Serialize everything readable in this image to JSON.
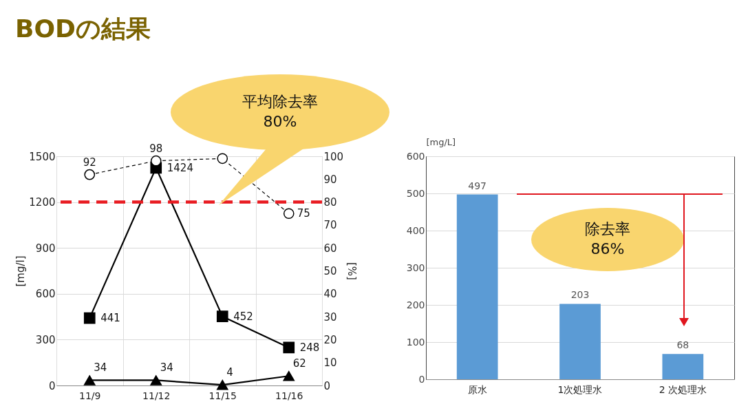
{
  "chart_data": [
    {
      "type": "line",
      "title": "BODの結果",
      "categories": [
        "11/9",
        "11/12",
        "11/15",
        "11/16"
      ],
      "ylabel": "[mg/l]",
      "y2label": "[%]",
      "ylim": [
        0,
        1500
      ],
      "yticks": [
        0,
        300,
        600,
        900,
        1200,
        1500
      ],
      "y2lim": [
        0,
        100
      ],
      "y2ticks": [
        0,
        10,
        20,
        30,
        40,
        50,
        60,
        70,
        80,
        90,
        100
      ],
      "grid": true,
      "series": [
        {
          "color": "#000000",
          "marker": "square",
          "line_style": "solid",
          "values": [
            441,
            1424,
            452,
            248
          ],
          "value_labels": [
            "441",
            "1424",
            "452",
            "248"
          ]
        },
        {
          "color": "#000000",
          "marker": "triangle",
          "line_style": "solid",
          "values": [
            34,
            34,
            4,
            62
          ],
          "value_labels": [
            "34",
            "34",
            "4",
            "62"
          ]
        },
        {
          "color": "#000000",
          "marker": "circle",
          "line_style": "dashed",
          "axis": "y2",
          "values": [
            92,
            98,
            99,
            75
          ],
          "value_labels": [
            "92",
            "98",
            null,
            "75"
          ]
        }
      ],
      "ref_lines": [
        {
          "axis": "y2",
          "value": 80,
          "color": "#e8191f",
          "line_style": "dashed"
        }
      ],
      "annotations": [
        "平均除去率\n80%"
      ]
    },
    {
      "type": "bar",
      "categories": [
        "原水",
        "1次処理水",
        "2 次処理水"
      ],
      "values": [
        497,
        203,
        68
      ],
      "color": "#5b9bd5",
      "ylabel": "[mg/L]",
      "ylim": [
        0,
        600
      ],
      "yticks": [
        0,
        100,
        200,
        300,
        400,
        500,
        600
      ],
      "grid": "y",
      "data_labels": true,
      "annotations": [
        "除去率\n86%"
      ]
    }
  ]
}
